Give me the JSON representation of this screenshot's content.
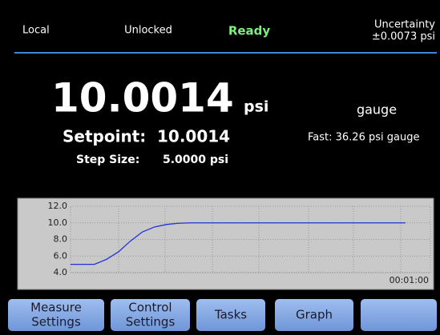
{
  "status_bar": {
    "mode": "Local",
    "lock": "Unlocked",
    "state": "Ready",
    "uncertainty_label": "Uncertainty",
    "uncertainty_value": "±0.0073 psi"
  },
  "reading": {
    "value": "10.0014",
    "unit": "psi",
    "mode": "gauge",
    "setpoint_label": "Setpoint:",
    "setpoint_value": "10.0014",
    "fast": "Fast:  36.26 psi gauge",
    "step_label": "Step Size:",
    "step_value": "5.0000  psi"
  },
  "graph": {
    "ylim": [
      4,
      12
    ],
    "yticks": [
      {
        "value": 4,
        "label": "4.0"
      },
      {
        "value": 6,
        "label": "6.0"
      },
      {
        "value": 8,
        "label": "8.0"
      },
      {
        "value": 10,
        "label": "10.0"
      },
      {
        "value": 12,
        "label": "12.0"
      }
    ],
    "time_label": "00:01:00",
    "color": "#1e32d8",
    "values": [
      5,
      5,
      5,
      5.6,
      6.5,
      7.8,
      8.9,
      9.5,
      9.8,
      9.95,
      10,
      10,
      10,
      10,
      10,
      10,
      10,
      10,
      10,
      10,
      10,
      10,
      10,
      10,
      10,
      10,
      10,
      10,
      10
    ]
  },
  "buttons": [
    [
      "Measure",
      "Settings"
    ],
    [
      "Control",
      "Settings"
    ],
    [
      "Tasks"
    ],
    [
      "Graph"
    ]
  ]
}
